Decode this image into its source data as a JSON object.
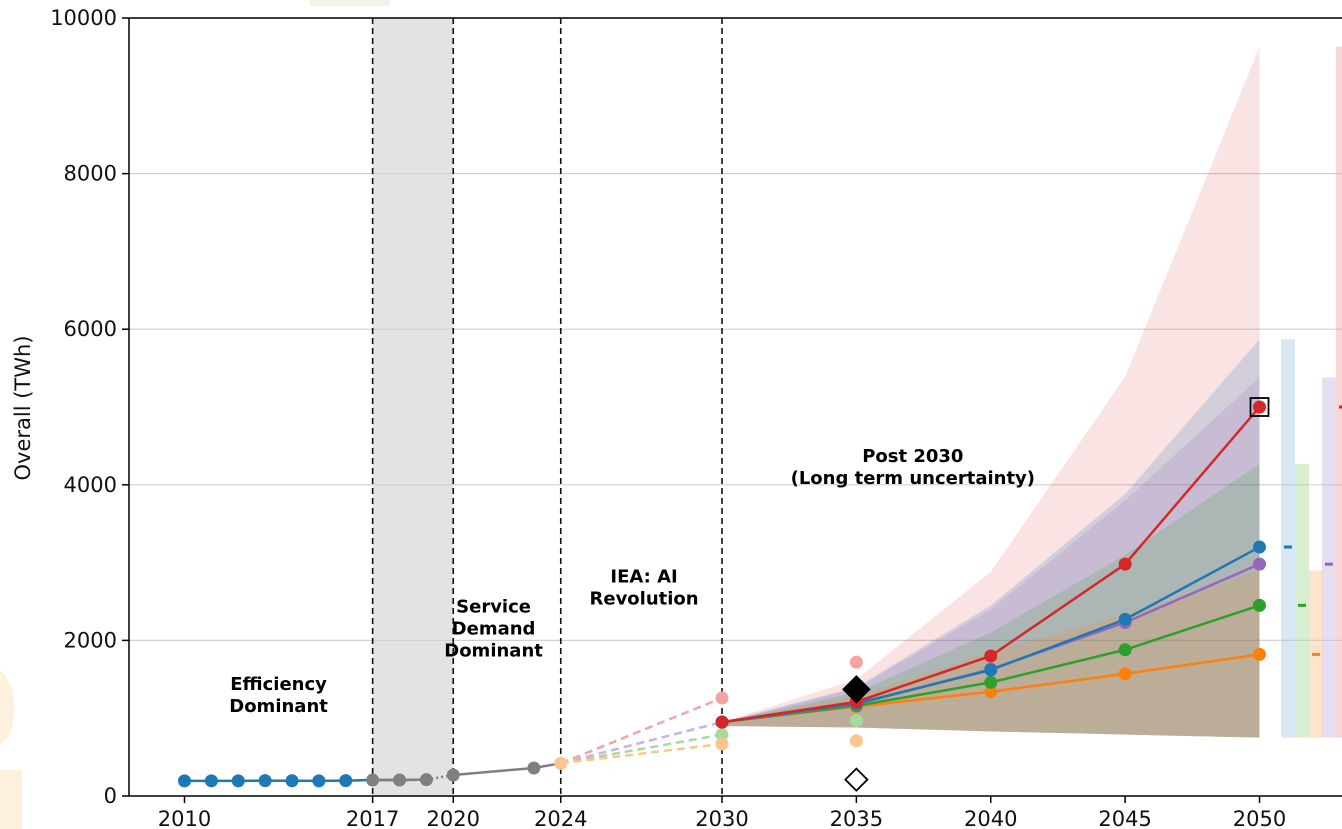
{
  "chart_data": {
    "type": "line",
    "ylabel": "Overall (TWh)",
    "ylim": [
      0,
      10000
    ],
    "yticks": [
      0,
      2000,
      4000,
      6000,
      8000,
      10000
    ],
    "ytick_labels": [
      "0",
      "2000",
      "4000",
      "6000",
      "8000",
      "10000"
    ],
    "xticks": [
      2010,
      2017,
      2020,
      2024,
      2030,
      2035,
      2040,
      2045,
      2050
    ],
    "xtick_labels": [
      "2010",
      "2017",
      "2020",
      "2024",
      "2030",
      "2035",
      "2040",
      "2045",
      "2050"
    ],
    "grid": "horizontal",
    "shaded_period": [
      2017,
      2020
    ],
    "vertical_lines": [
      2017,
      2020,
      2024,
      2030
    ],
    "annotations": [
      {
        "lines": [
          "Efficiency",
          "Dominant"
        ],
        "x": 2013.5,
        "y": 1300
      },
      {
        "lines": [
          "Service",
          "Demand",
          "Dominant"
        ],
        "x": 2021.5,
        "y": 2150
      },
      {
        "lines": [
          "IEA: AI",
          "Revolution"
        ],
        "x": 2027.1,
        "y": 2680
      },
      {
        "lines": [
          "Post 2030",
          "(Long term uncertainty)"
        ],
        "x": 2037.1,
        "y": 4230
      }
    ],
    "historical": {
      "color": "#1f77b4",
      "x": [
        2010,
        2011,
        2012,
        2013,
        2014,
        2015,
        2016,
        2017,
        2018,
        2019
      ],
      "y": [
        194,
        195,
        194,
        198,
        196,
        194,
        198,
        205,
        206,
        210
      ]
    },
    "transition": {
      "color": "#808080",
      "points_x": [
        2017,
        2018,
        2019,
        2020,
        2023
      ],
      "points_y": [
        205,
        206,
        210,
        270,
        360
      ],
      "line_x": [
        2017,
        2018,
        2019,
        2020,
        2023,
        2024
      ],
      "line_y": [
        205,
        206,
        210,
        270,
        360,
        420
      ]
    },
    "start_2024": 420,
    "series": [
      {
        "color": "#d62728",
        "light": "#f5a3a3",
        "y2030_alt": 1260,
        "y2035_alt": 1720,
        "x": [
          2030,
          2035,
          2040,
          2045,
          2050
        ],
        "values": [
          950,
          1210,
          1800,
          2980,
          5000
        ],
        "band_lower": [
          900,
          880,
          830,
          790,
          750
        ],
        "band_upper": [
          950,
          1500,
          2880,
          5390,
          9630
        ],
        "bar_mid": 5000
      },
      {
        "color": "#1f77b4",
        "light": "#a9c9e4",
        "y2030_alt": 950,
        "y2035_alt": 1180,
        "x": [
          2030,
          2035,
          2040,
          2045,
          2050
        ],
        "values": [
          950,
          1190,
          1620,
          2270,
          3200
        ],
        "band_lower": [
          900,
          880,
          830,
          790,
          750
        ],
        "band_upper": [
          950,
          1400,
          2450,
          3880,
          5870
        ],
        "bar_mid": 3200
      },
      {
        "color": "#9467bd",
        "light": "#cdb5e0",
        "y2030_alt": 950,
        "y2035_alt": 1190,
        "x": [
          2030,
          2035,
          2040,
          2045,
          2050
        ],
        "values": [
          950,
          1180,
          1630,
          2230,
          2980
        ],
        "band_lower": [
          900,
          880,
          830,
          790,
          750
        ],
        "band_upper": [
          950,
          1380,
          2400,
          3800,
          5380
        ],
        "bar_mid": 2980
      },
      {
        "color": "#2ca02c",
        "light": "#a7d99a",
        "y2030_alt": 790,
        "y2035_alt": 970,
        "x": [
          2030,
          2035,
          2040,
          2045,
          2050
        ],
        "values": [
          950,
          1160,
          1460,
          1880,
          2450
        ],
        "band_lower": [
          900,
          880,
          830,
          790,
          750
        ],
        "band_upper": [
          950,
          1330,
          2100,
          3100,
          4270
        ],
        "bar_mid": 2450
      },
      {
        "color": "#ff7f0e",
        "light": "#fbc58e",
        "y2030_alt": 670,
        "y2035_alt": 710,
        "x": [
          2030,
          2035,
          2040,
          2045,
          2050
        ],
        "values": [
          950,
          1150,
          1340,
          1570,
          1820
        ],
        "band_lower": [
          900,
          880,
          830,
          790,
          750
        ],
        "band_upper": [
          950,
          1290,
          1850,
          2330,
          2900
        ],
        "bar_mid": 1820
      }
    ],
    "markers": [
      {
        "shape": "diamond",
        "filled": true,
        "x": 2035,
        "y": 1370
      },
      {
        "shape": "diamond",
        "filled": false,
        "x": 2035,
        "y": 210
      },
      {
        "shape": "square",
        "filled": false,
        "x": 2050,
        "y": 5000
      }
    ]
  }
}
